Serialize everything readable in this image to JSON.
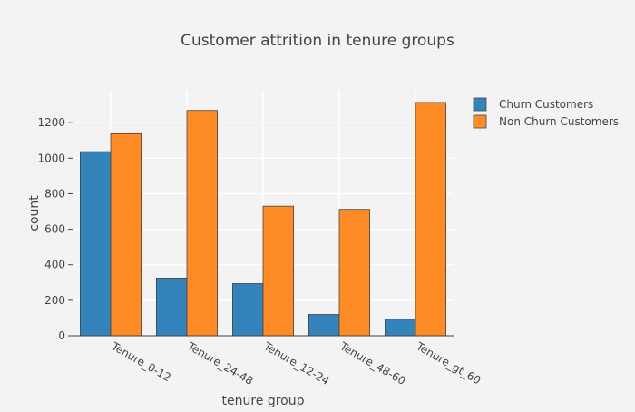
{
  "chart_data": {
    "type": "bar",
    "title": "Customer attrition in tenure groups",
    "xlabel": "tenure group",
    "ylabel": "count",
    "categories": [
      "Tenure_0-12",
      "Tenure_24-48",
      "Tenure_12-24",
      "Tenure_48-60",
      "Tenure_gt_60"
    ],
    "series": [
      {
        "name": "Churn Customers",
        "color": "#1f77b4",
        "values": [
          1037,
          325,
          294,
          120,
          93
        ]
      },
      {
        "name": "Non Churn Customers",
        "color": "#ff7f0e",
        "values": [
          1138,
          1269,
          730,
          712,
          1314
        ]
      }
    ],
    "ylim": [
      0,
      1380
    ],
    "yticks": [
      0,
      200,
      400,
      600,
      800,
      1000,
      1200
    ],
    "grid": true,
    "legend_position": "top-right",
    "background_color": "#f3f3f3",
    "grid_color": "#ffffff"
  }
}
